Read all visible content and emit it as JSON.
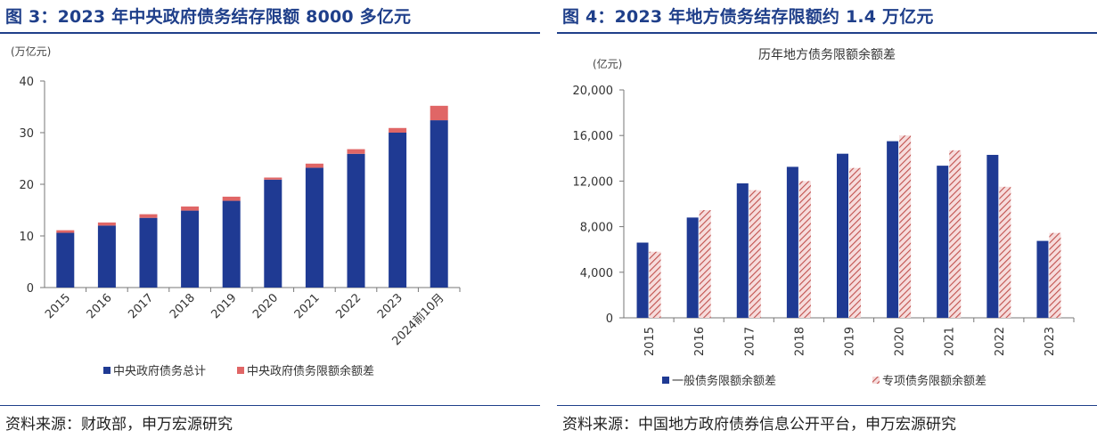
{
  "figures": [
    {
      "figure_title": "图 3：2023 年中央政府债务结存限额 8000 多亿元",
      "source": "资料来源：财政部，申万宏源研究"
    },
    {
      "figure_title": "图 4：2023 年地方债务结存限额约 1.4 万亿元",
      "source": "资料来源：中国地方政府债券信息公开平台，申万宏源研究"
    }
  ],
  "chart_data": [
    {
      "type": "bar",
      "stacked": true,
      "title": "",
      "ylabel": "(万亿元)",
      "xlabel": "",
      "ylim": [
        0,
        40
      ],
      "yticks": [
        "0",
        "10",
        "20",
        "30",
        "40"
      ],
      "categories": [
        "2015",
        "2016",
        "2017",
        "2018",
        "2019",
        "2020",
        "2021",
        "2022",
        "2023",
        "2024前10月"
      ],
      "series": [
        {
          "name": "中央政府债务总计",
          "color": "#1f3a93",
          "values": [
            10.6,
            12.0,
            13.5,
            14.9,
            16.8,
            20.9,
            23.2,
            25.9,
            30.0,
            32.4
          ]
        },
        {
          "name": "中央政府债务限额余额差",
          "color": "#e06666",
          "values": [
            0.5,
            0.6,
            0.7,
            0.8,
            0.8,
            0.4,
            0.8,
            0.9,
            0.9,
            2.8
          ]
        }
      ],
      "legend": "bottom"
    },
    {
      "type": "bar",
      "stacked": false,
      "title": "历年地方债务限额余额差",
      "ylabel": "(亿元)",
      "xlabel": "",
      "ylim": [
        0,
        20000
      ],
      "yticks": [
        "0",
        "4,000",
        "8,000",
        "12,000",
        "16,000",
        "20,000"
      ],
      "categories": [
        "2015",
        "2016",
        "2017",
        "2018",
        "2019",
        "2020",
        "2021",
        "2022",
        "2023"
      ],
      "series": [
        {
          "name": "一般债务限额余额差",
          "color": "#1f3a93",
          "values": [
            6600,
            8800,
            11800,
            13250,
            14400,
            15500,
            13350,
            14300,
            6750
          ]
        },
        {
          "name": "专项债务限额余额差",
          "color": "#c0504d",
          "pattern": "hatched",
          "values": [
            5800,
            9450,
            11200,
            12000,
            13150,
            16000,
            14700,
            11500,
            7450
          ]
        }
      ],
      "legend": "bottom"
    }
  ]
}
